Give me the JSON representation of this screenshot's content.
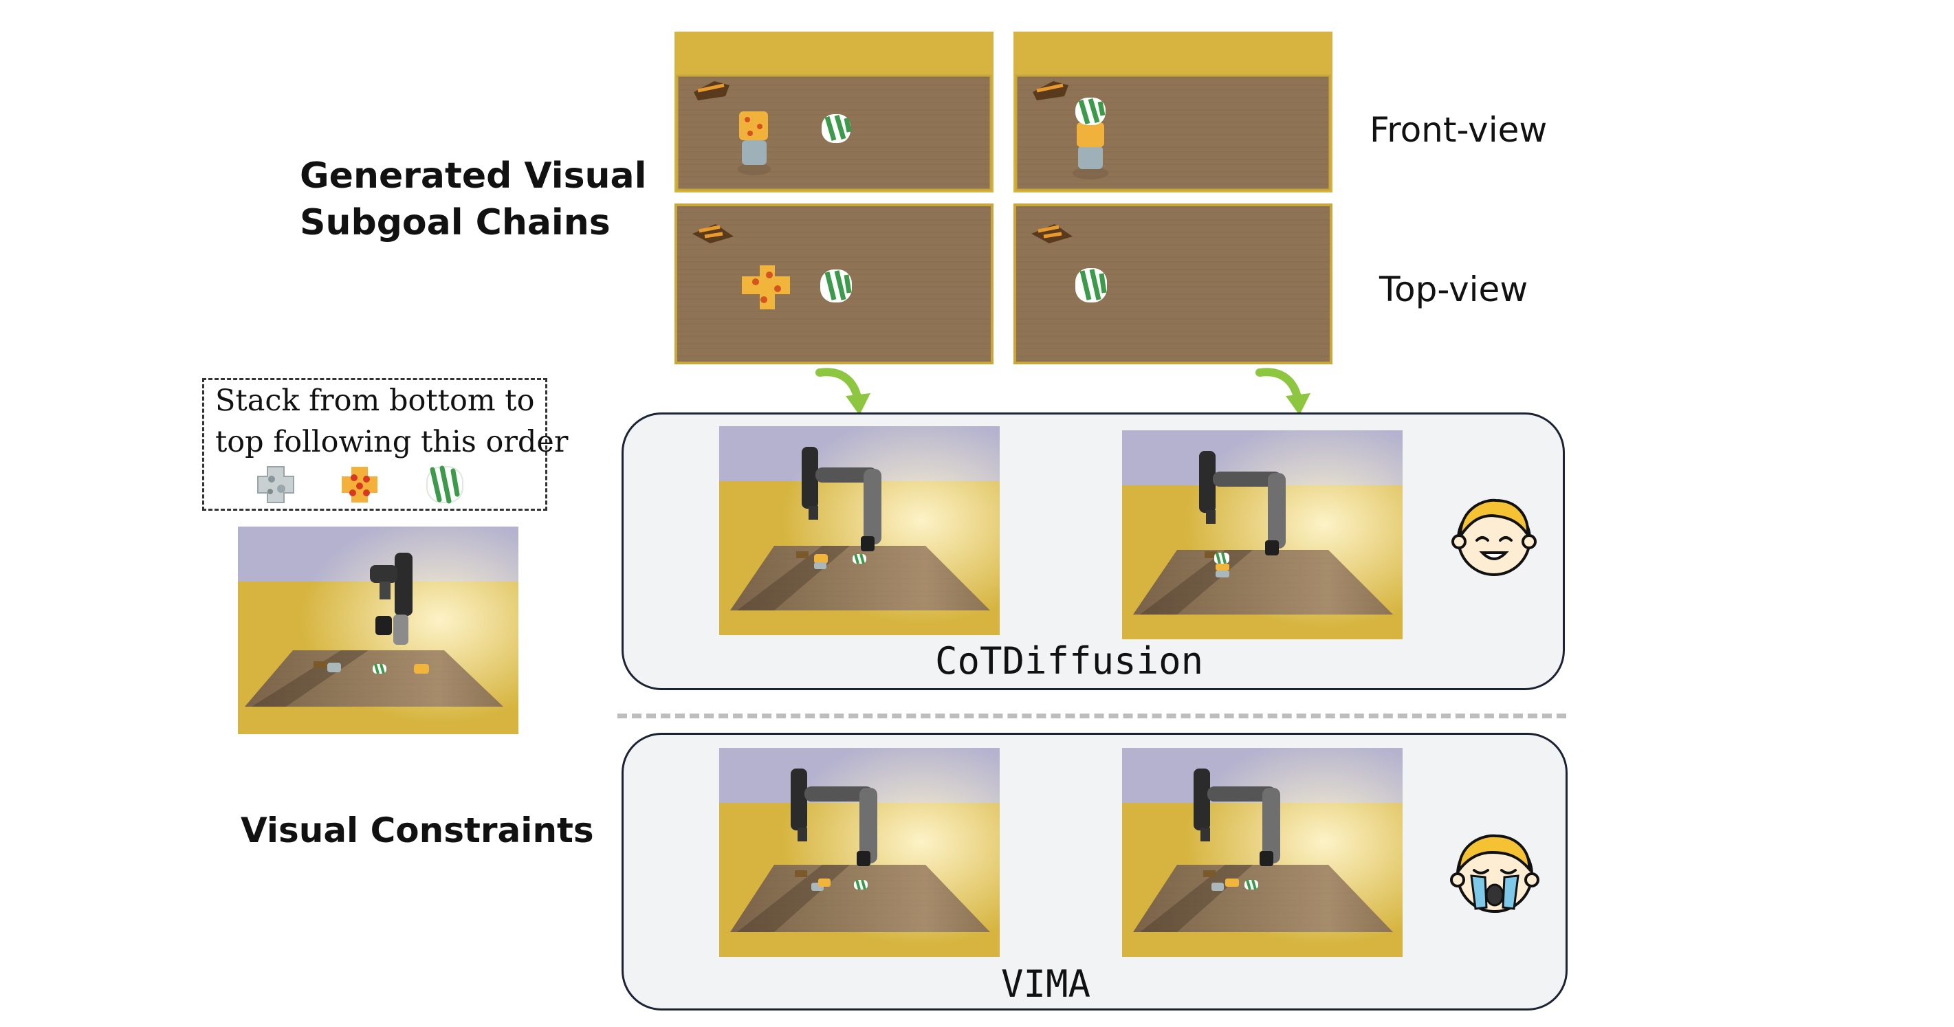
{
  "generated_title_line1": "Generated Visual",
  "generated_title_line2": "Subgoal Chains",
  "front_view_label": "Front-view",
  "top_view_label": "Top-view",
  "instruction_line1": "Stack from bottom to",
  "instruction_line2": "top following this order",
  "visual_constraints_label": "Visual Constraints",
  "method_cot": "CoTDiffusion",
  "method_vima": "VIMA",
  "icons": {
    "order": [
      "gray-cross-block-icon",
      "red-dotted-orange-block-icon",
      "green-striped-block-icon"
    ],
    "happy": "happy-face-icon",
    "sad": "crying-face-icon",
    "arrow": "curved-green-arrow-icon"
  },
  "colors": {
    "table_yellow": "#D6B43F",
    "wood": "#8E7354",
    "sky": "#B4B2CF",
    "arrow_green": "#8DC63F",
    "panel_border": "#1C2333",
    "panel_fill": "#F2F3F5"
  }
}
